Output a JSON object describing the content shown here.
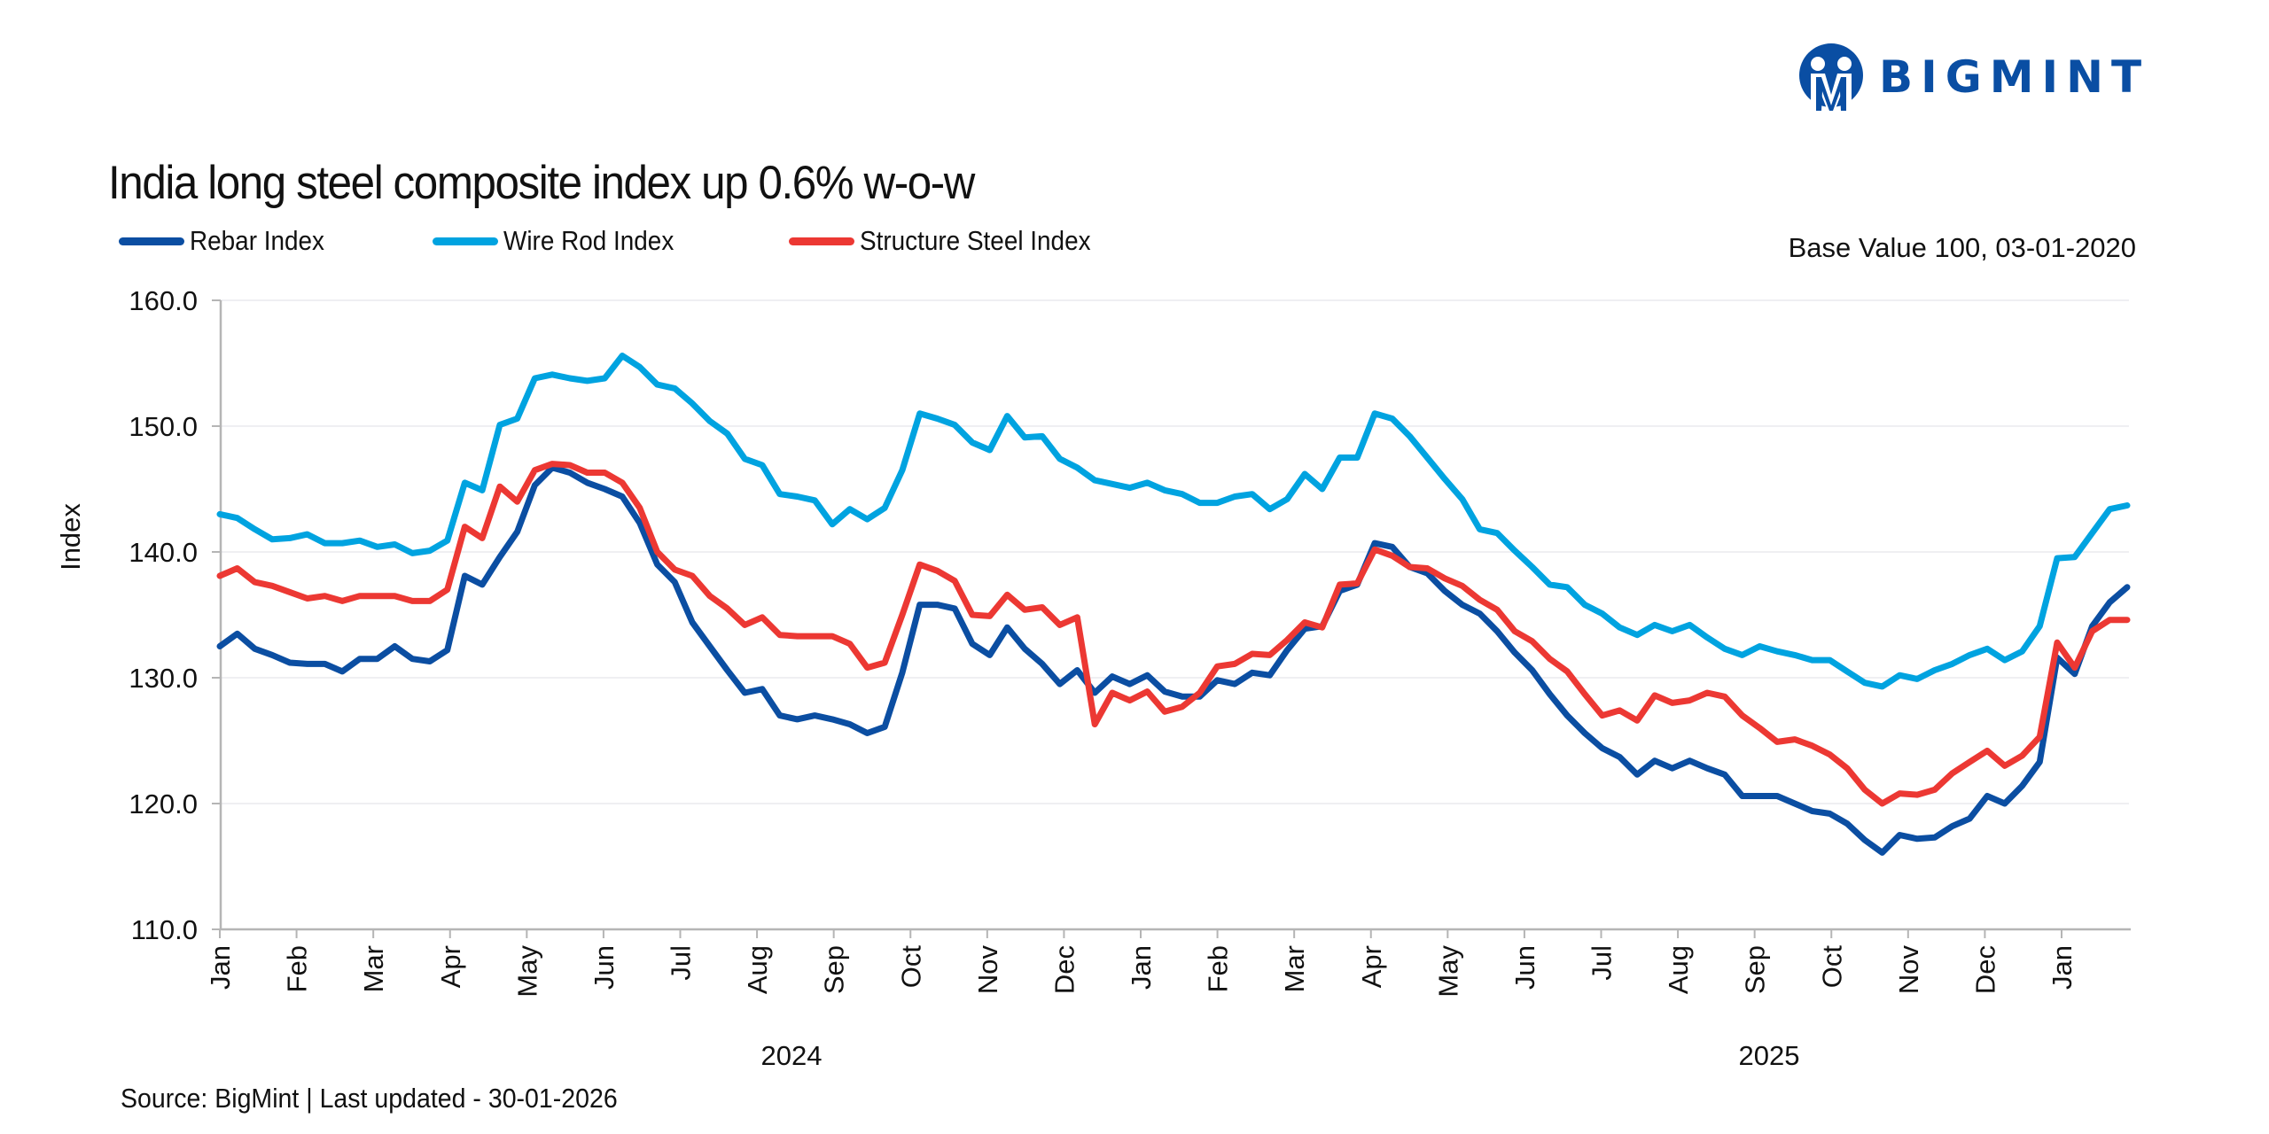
{
  "brand": {
    "logo_text": "BIGMINT",
    "color": "#0a4ea3"
  },
  "base_note": "Base Value 100, 03-01-2020",
  "footer": "Source: BigMint | Last updated - 30-01-2026",
  "chart_data": {
    "type": "line",
    "title": "India long steel composite index up 0.6% w-o-w",
    "xlabel": "",
    "ylabel": "Index",
    "ylim": [
      110,
      160
    ],
    "yticks": [
      "160.0",
      "150.0",
      "140.0",
      "130.0",
      "120.0",
      "110.0"
    ],
    "ytick_values": [
      160,
      150,
      140,
      130,
      120,
      110
    ],
    "grid": true,
    "legend_position": "top-left",
    "frequency": "weekly",
    "x_start": "Jan 2024",
    "x_end": "Jan 2026",
    "month_ticks": [
      "Jan",
      "Feb",
      "Mar",
      "Apr",
      "May",
      "Jun",
      "Jul",
      "Aug",
      "Sep",
      "Oct",
      "Nov",
      "Dec",
      "Jan",
      "Feb",
      "Mar",
      "Apr",
      "May",
      "Jun",
      "Jul",
      "Aug",
      "Sep",
      "Oct",
      "Nov",
      "Dec",
      "Jan"
    ],
    "year_labels": [
      "2024",
      "2025"
    ],
    "series": [
      {
        "name": "Rebar Index",
        "color": "#0b4ea2",
        "values": [
          132.5,
          133.5,
          132.3,
          131.8,
          131.2,
          131.1,
          131.1,
          130.5,
          131.5,
          131.5,
          132.5,
          131.5,
          131.3,
          132.2,
          138.1,
          137.4,
          139.6,
          141.6,
          145.3,
          146.7,
          146.3,
          145.5,
          145.0,
          144.4,
          142.3,
          139.0,
          137.6,
          134.4,
          132.5,
          130.6,
          128.8,
          129.1,
          127.0,
          126.7,
          127.0,
          126.7,
          126.3,
          125.6,
          126.1,
          130.4,
          135.8,
          135.8,
          135.5,
          132.7,
          131.8,
          134.0,
          132.3,
          131.1,
          129.5,
          130.6,
          128.8,
          130.1,
          129.5,
          130.2,
          128.9,
          128.5,
          128.5,
          129.8,
          129.5,
          130.4,
          130.2,
          132.2,
          133.9,
          134.1,
          136.9,
          137.4,
          140.7,
          140.4,
          138.8,
          138.3,
          136.9,
          135.8,
          135.1,
          133.7,
          132.0,
          130.6,
          128.7,
          127.0,
          125.6,
          124.4,
          123.7,
          122.3,
          123.4,
          122.8,
          123.4,
          122.8,
          122.3,
          120.6,
          120.6,
          120.6,
          120.0,
          119.4,
          119.2,
          118.4,
          117.1,
          116.1,
          117.5,
          117.2,
          117.3,
          118.2,
          118.8,
          120.6,
          120.0,
          121.4,
          123.3,
          131.6,
          130.3,
          134.1,
          136.0,
          137.2
        ]
      },
      {
        "name": "Wire Rod Index",
        "color": "#00a3e0",
        "values": [
          143.0,
          142.7,
          141.8,
          141.0,
          141.1,
          141.4,
          140.7,
          140.7,
          140.9,
          140.4,
          140.6,
          139.9,
          140.1,
          140.9,
          145.5,
          144.9,
          150.1,
          150.6,
          153.8,
          154.1,
          153.8,
          153.6,
          153.8,
          155.6,
          154.7,
          153.3,
          153.0,
          151.8,
          150.4,
          149.4,
          147.4,
          146.9,
          144.6,
          144.4,
          144.1,
          142.2,
          143.4,
          142.6,
          143.5,
          146.5,
          151.0,
          150.6,
          150.1,
          148.7,
          148.1,
          150.8,
          149.1,
          149.2,
          147.4,
          146.7,
          145.7,
          145.4,
          145.1,
          145.5,
          144.9,
          144.6,
          143.9,
          143.9,
          144.4,
          144.6,
          143.4,
          144.2,
          146.2,
          145.0,
          147.5,
          147.5,
          151.0,
          150.6,
          149.2,
          147.5,
          145.8,
          144.2,
          141.8,
          141.5,
          140.1,
          138.8,
          137.4,
          137.2,
          135.8,
          135.1,
          134.0,
          133.4,
          134.2,
          133.7,
          134.2,
          133.2,
          132.3,
          131.8,
          132.5,
          132.1,
          131.8,
          131.4,
          131.4,
          130.5,
          129.6,
          129.3,
          130.2,
          129.9,
          130.6,
          131.1,
          131.8,
          132.3,
          131.4,
          132.1,
          134.1,
          139.5,
          139.6,
          141.5,
          143.4,
          143.7
        ]
      },
      {
        "name": "Structure Steel Index",
        "color": "#ec3833",
        "values": [
          138.1,
          138.7,
          137.6,
          137.3,
          136.8,
          136.3,
          136.5,
          136.1,
          136.5,
          136.5,
          136.5,
          136.1,
          136.1,
          137.0,
          142.0,
          141.1,
          145.2,
          144.0,
          146.5,
          147.0,
          146.9,
          146.3,
          146.3,
          145.5,
          143.5,
          140.0,
          138.6,
          138.1,
          136.5,
          135.5,
          134.2,
          134.8,
          133.4,
          133.3,
          133.3,
          133.3,
          132.7,
          130.8,
          131.2,
          135.0,
          139.0,
          138.5,
          137.7,
          135.0,
          134.9,
          136.6,
          135.4,
          135.6,
          134.2,
          134.8,
          126.3,
          128.8,
          128.2,
          128.9,
          127.3,
          127.7,
          128.8,
          130.9,
          131.1,
          131.9,
          131.8,
          133.0,
          134.4,
          134.0,
          137.4,
          137.5,
          140.2,
          139.7,
          138.8,
          138.7,
          137.9,
          137.3,
          136.2,
          135.4,
          133.7,
          132.9,
          131.5,
          130.5,
          128.7,
          127.0,
          127.4,
          126.6,
          128.6,
          128.0,
          128.2,
          128.8,
          128.5,
          127.0,
          126.0,
          124.9,
          125.1,
          124.6,
          123.9,
          122.8,
          121.1,
          120.0,
          120.8,
          120.7,
          121.1,
          122.4,
          123.3,
          124.2,
          123.0,
          123.8,
          125.3,
          132.8,
          130.8,
          133.7,
          134.6,
          134.6
        ]
      }
    ]
  }
}
